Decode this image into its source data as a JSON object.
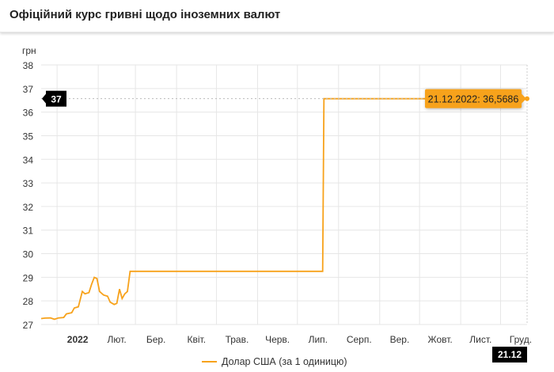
{
  "header": {
    "title": "Офіційний курс гривні щодо іноземних валют"
  },
  "chart_data": {
    "type": "line",
    "ylabel": "грн",
    "ylim": [
      27,
      38
    ],
    "yticks": [
      "27",
      "28",
      "29",
      "30",
      "31",
      "32",
      "33",
      "34",
      "35",
      "36",
      "37",
      "38"
    ],
    "xlim": [
      "2021-12-20",
      "2022-12-21"
    ],
    "xticks": [
      {
        "date": "2022-01-01",
        "label": "2022"
      },
      {
        "date": "2022-02-01",
        "label": "Лют."
      },
      {
        "date": "2022-03-01",
        "label": "Бер."
      },
      {
        "date": "2022-04-01",
        "label": "Квіт."
      },
      {
        "date": "2022-05-01",
        "label": "Трав."
      },
      {
        "date": "2022-06-01",
        "label": "Черв."
      },
      {
        "date": "2022-07-01",
        "label": "Лип."
      },
      {
        "date": "2022-08-01",
        "label": "Серп."
      },
      {
        "date": "2022-09-01",
        "label": "Вер."
      },
      {
        "date": "2022-10-01",
        "label": "Жовт."
      },
      {
        "date": "2022-11-01",
        "label": "Лист."
      },
      {
        "date": "2022-12-01",
        "label": "Груд."
      }
    ],
    "grid": true,
    "legend": "bottom",
    "series": [
      {
        "name": "Долар США (за 1 одиницю)",
        "color": "#f7a21b",
        "points": [
          [
            "2021-12-20",
            27.25
          ],
          [
            "2021-12-23",
            27.27
          ],
          [
            "2021-12-27",
            27.28
          ],
          [
            "2021-12-30",
            27.22
          ],
          [
            "2022-01-02",
            27.28
          ],
          [
            "2022-01-06",
            27.3
          ],
          [
            "2022-01-08",
            27.45
          ],
          [
            "2022-01-12",
            27.5
          ],
          [
            "2022-01-14",
            27.7
          ],
          [
            "2022-01-17",
            27.75
          ],
          [
            "2022-01-20",
            28.4
          ],
          [
            "2022-01-22",
            28.3
          ],
          [
            "2022-01-25",
            28.35
          ],
          [
            "2022-01-27",
            28.7
          ],
          [
            "2022-01-29",
            29.0
          ],
          [
            "2022-01-31",
            28.95
          ],
          [
            "2022-02-02",
            28.4
          ],
          [
            "2022-02-05",
            28.25
          ],
          [
            "2022-02-08",
            28.2
          ],
          [
            "2022-02-10",
            27.95
          ],
          [
            "2022-02-13",
            27.85
          ],
          [
            "2022-02-15",
            27.9
          ],
          [
            "2022-02-17",
            28.5
          ],
          [
            "2022-02-19",
            28.1
          ],
          [
            "2022-02-21",
            28.3
          ],
          [
            "2022-02-23",
            28.4
          ],
          [
            "2022-02-25",
            29.2549
          ],
          [
            "2022-07-20",
            29.2549
          ],
          [
            "2022-07-21",
            36.5686
          ],
          [
            "2022-12-21",
            36.5686
          ]
        ]
      }
    ],
    "tooltip": {
      "label": "21.12.2022: 36,5686",
      "value": 36.5686,
      "date": "2022-12-21"
    },
    "crosshair": {
      "y_label": "37",
      "x_label": "21.12"
    }
  }
}
